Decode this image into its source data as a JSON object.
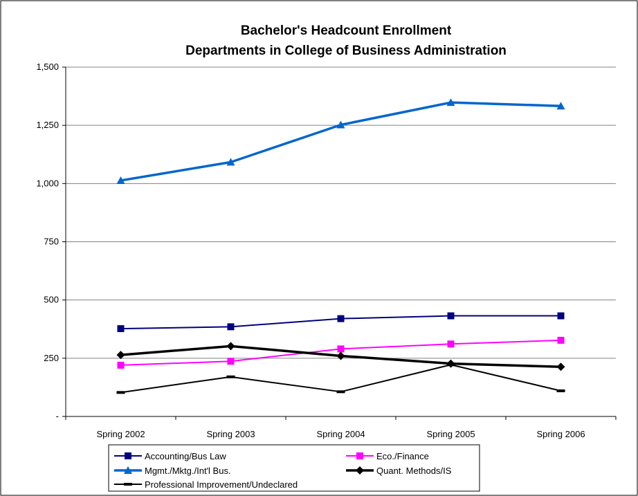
{
  "chart_data": {
    "type": "line",
    "title": [
      "Bachelor's Headcount Enrollment",
      "Departments in College of Business Administration"
    ],
    "xlabel": "",
    "ylabel": "",
    "categories": [
      "Spring 2002",
      "Spring 2003",
      "Spring 2004",
      "Spring 2005",
      "Spring 2006"
    ],
    "ylim": [
      0,
      1500
    ],
    "yticks": [
      0,
      250,
      500,
      750,
      1000,
      1250,
      1500
    ],
    "ytick_labels": [
      "-",
      "250",
      "500",
      "750",
      "1,000",
      "1,250",
      "1,500"
    ],
    "grid": "horizontal",
    "legend_position": "bottom",
    "series": [
      {
        "name": "Accounting/Bus Law",
        "values": [
          377,
          385,
          420,
          432,
          432
        ],
        "color": "#000080",
        "marker": "square",
        "width": 2
      },
      {
        "name": "Eco./Finance",
        "values": [
          220,
          237,
          290,
          311,
          327
        ],
        "color": "#ff00ff",
        "marker": "square",
        "width": 2
      },
      {
        "name": "Mgmt./Mktg./Int'l Bus.",
        "values": [
          1013,
          1092,
          1252,
          1348,
          1333
        ],
        "color": "#0066cc",
        "marker": "triangle",
        "width": 3.5
      },
      {
        "name": "Quant. Methods/IS",
        "values": [
          264,
          302,
          260,
          227,
          213
        ],
        "color": "#000000",
        "marker": "diamond",
        "width": 3.5
      },
      {
        "name": "Professional Improvement/Undeclared",
        "values": [
          103,
          170,
          106,
          222,
          110
        ],
        "color": "#000000",
        "marker": "dash",
        "width": 2
      }
    ]
  }
}
